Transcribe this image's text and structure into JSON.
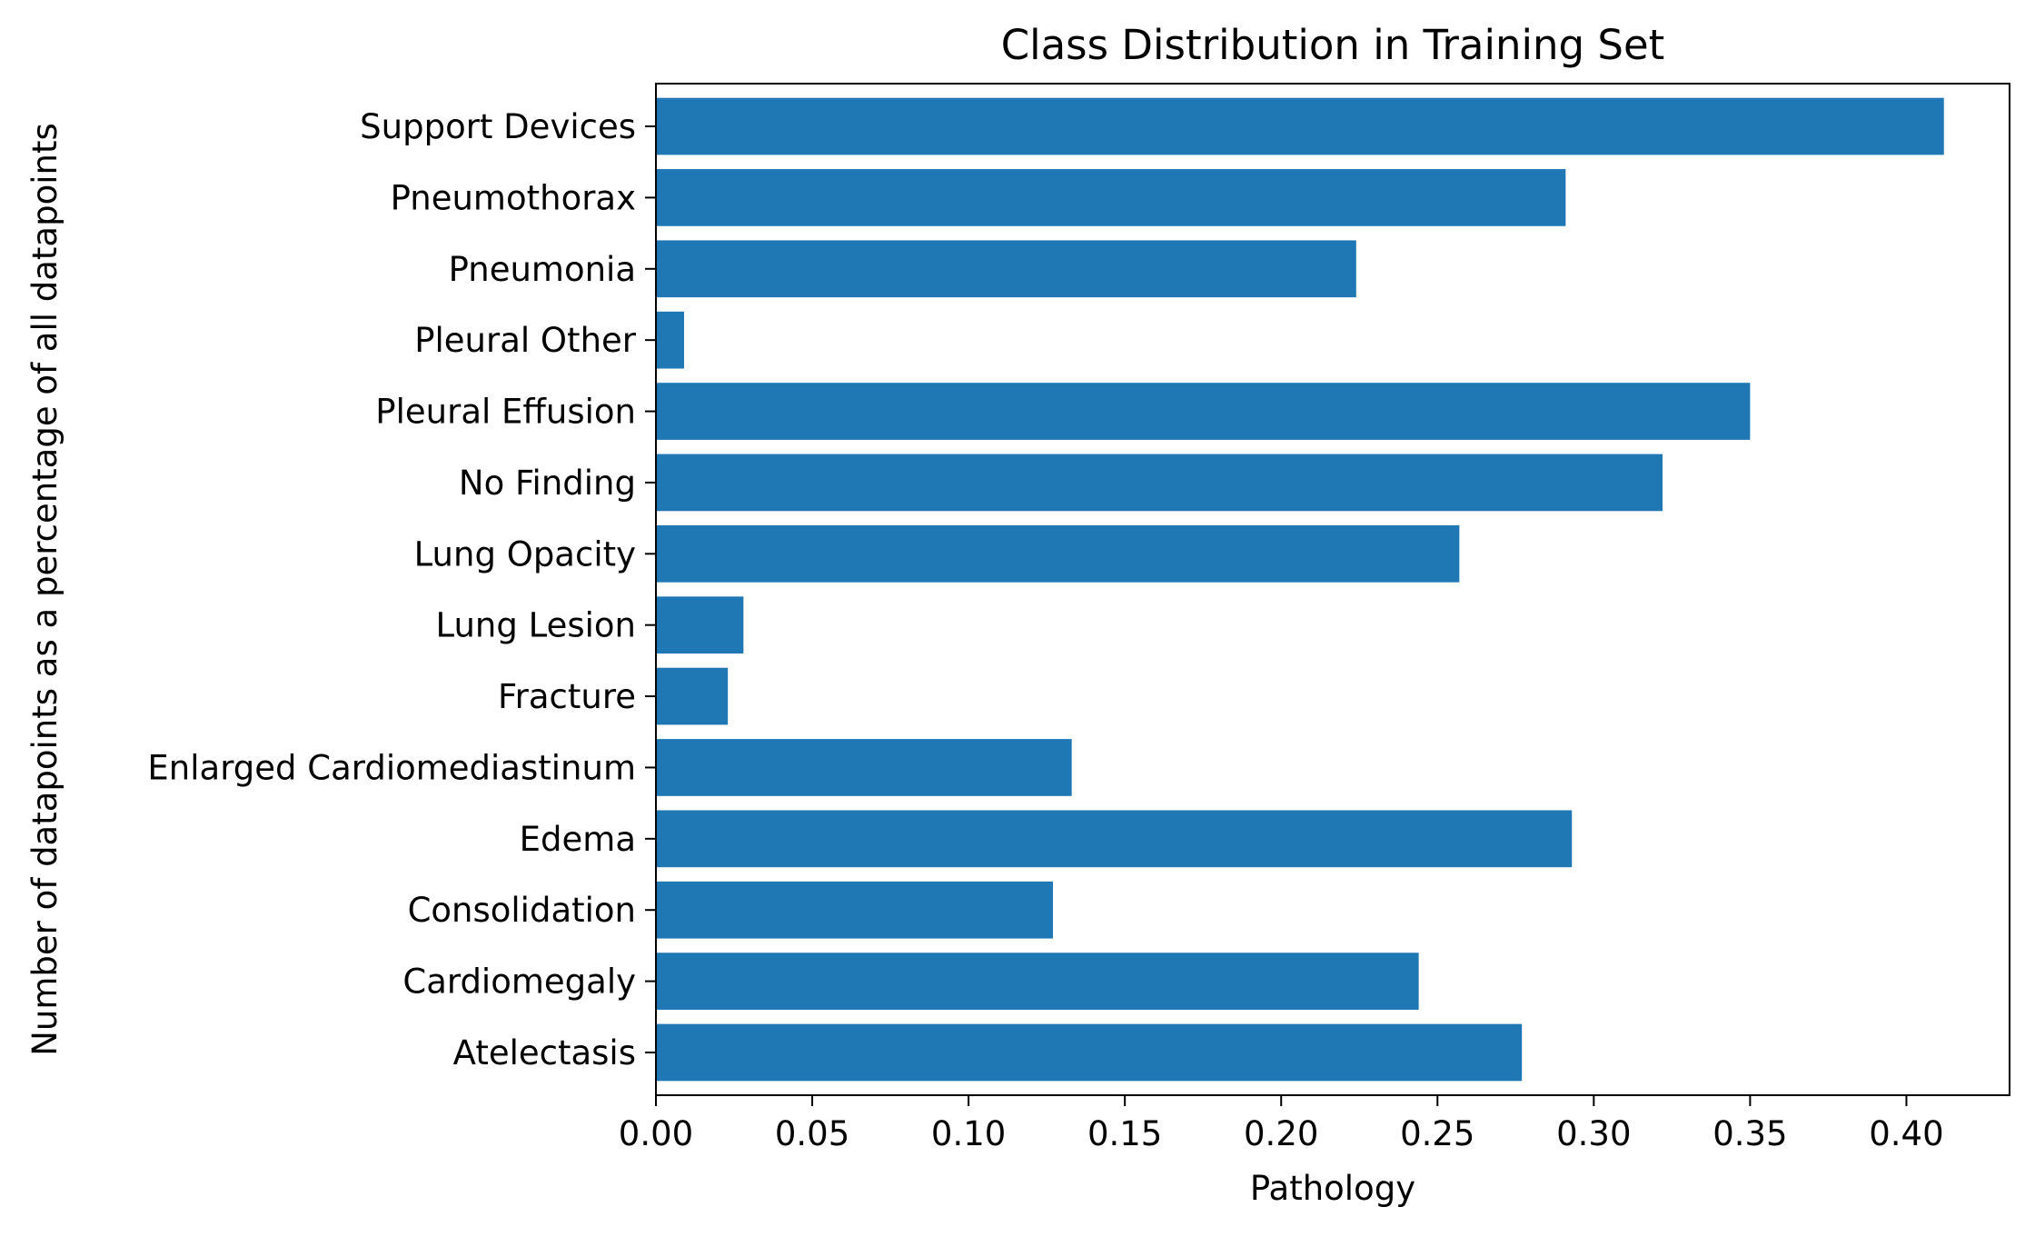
{
  "chart_data": {
    "type": "bar",
    "orientation": "horizontal",
    "title": "Class Distribution in Training Set",
    "xlabel": "Pathology",
    "ylabel": "Number of datapoints as a percentage of all datapoints",
    "categories": [
      "Atelectasis",
      "Cardiomegaly",
      "Consolidation",
      "Edema",
      "Enlarged Cardiomediastinum",
      "Fracture",
      "Lung Lesion",
      "Lung Opacity",
      "No Finding",
      "Pleural Effusion",
      "Pleural Other",
      "Pneumonia",
      "Pneumothorax",
      "Support Devices"
    ],
    "values": [
      0.277,
      0.244,
      0.127,
      0.293,
      0.133,
      0.023,
      0.028,
      0.257,
      0.322,
      0.35,
      0.009,
      0.224,
      0.291,
      0.412
    ],
    "xlim": [
      0,
      0.433
    ],
    "xticks": [
      0.0,
      0.05,
      0.1,
      0.15,
      0.2,
      0.25,
      0.3,
      0.35,
      0.4
    ],
    "xtick_labels": [
      "0.00",
      "0.05",
      "0.10",
      "0.15",
      "0.20",
      "0.25",
      "0.30",
      "0.35",
      "0.40"
    ],
    "grid": false,
    "legend": "none",
    "colors": {
      "bar": "#1f77b4",
      "axes": "#000000",
      "background": "#ffffff"
    }
  }
}
